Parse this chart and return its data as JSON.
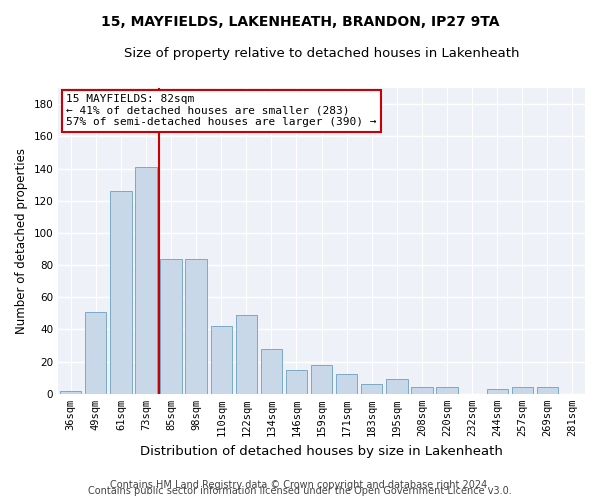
{
  "title_line1": "15, MAYFIELDS, LAKENHEATH, BRANDON, IP27 9TA",
  "title_line2": "Size of property relative to detached houses in Lakenheath",
  "xlabel": "Distribution of detached houses by size in Lakenheath",
  "ylabel": "Number of detached properties",
  "categories": [
    "36sqm",
    "49sqm",
    "61sqm",
    "73sqm",
    "85sqm",
    "98sqm",
    "110sqm",
    "122sqm",
    "134sqm",
    "146sqm",
    "159sqm",
    "171sqm",
    "183sqm",
    "195sqm",
    "208sqm",
    "220sqm",
    "232sqm",
    "244sqm",
    "257sqm",
    "269sqm",
    "281sqm"
  ],
  "values": [
    2,
    51,
    126,
    141,
    84,
    84,
    42,
    49,
    28,
    15,
    18,
    12,
    6,
    9,
    4,
    4,
    0,
    3,
    4,
    4,
    0
  ],
  "bar_color": "#c8d8e8",
  "bar_edge_color": "#7aaac8",
  "ylim": [
    0,
    190
  ],
  "yticks": [
    0,
    20,
    40,
    60,
    80,
    100,
    120,
    140,
    160,
    180
  ],
  "annotation_text_line1": "15 MAYFIELDS: 82sqm",
  "annotation_text_line2": "← 41% of detached houses are smaller (283)",
  "annotation_text_line3": "57% of semi-detached houses are larger (390) →",
  "annotation_box_facecolor": "#ffffff",
  "annotation_box_edgecolor": "#cc0000",
  "red_line_color": "#cc0000",
  "footer_line1": "Contains HM Land Registry data © Crown copyright and database right 2024.",
  "footer_line2": "Contains public sector information licensed under the Open Government Licence v3.0.",
  "fig_facecolor": "#ffffff",
  "ax_facecolor": "#eef2f8",
  "grid_color": "#ffffff",
  "title1_fontsize": 10,
  "title2_fontsize": 9.5,
  "xlabel_fontsize": 9.5,
  "ylabel_fontsize": 8.5,
  "tick_fontsize": 7.5,
  "annot_fontsize": 8,
  "footer_fontsize": 7
}
